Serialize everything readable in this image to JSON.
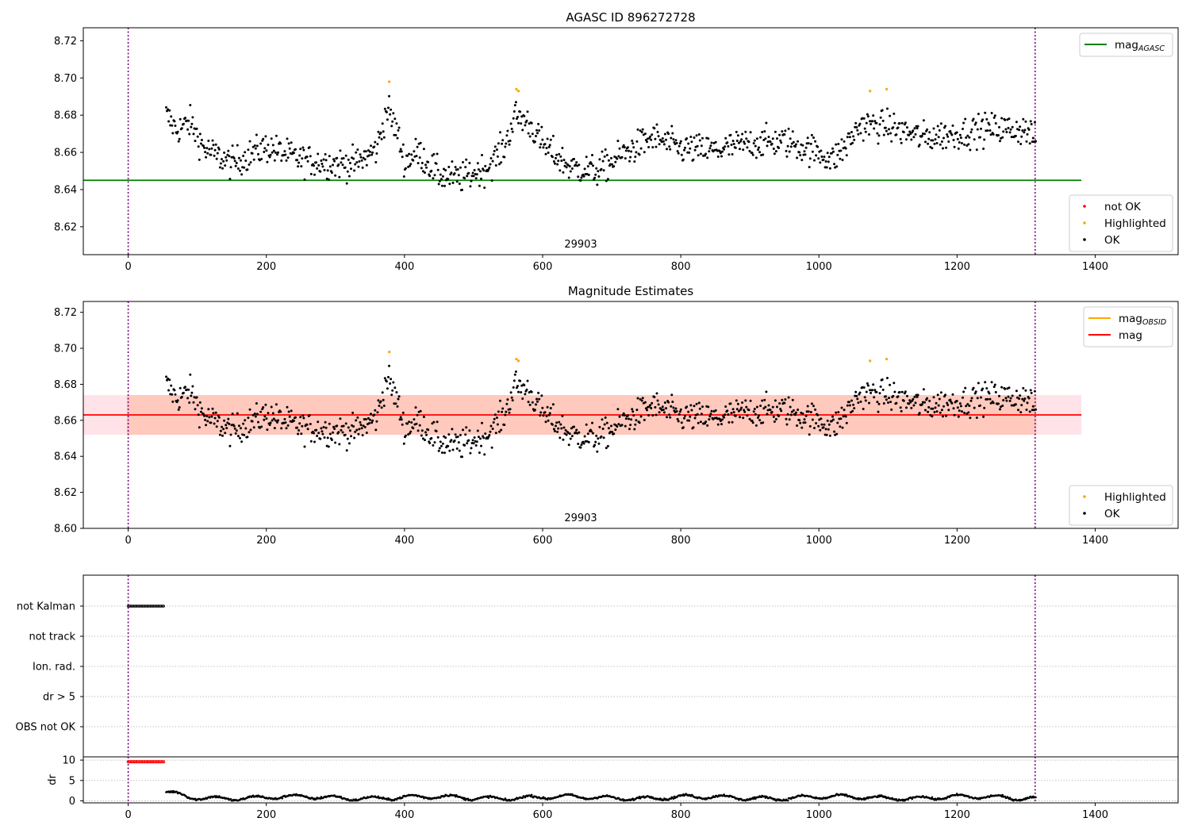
{
  "figure": {
    "width": 1500,
    "height": 1050
  },
  "chart_data": [
    {
      "type": "scatter",
      "title": "AGASC ID 896272728",
      "xlim": [
        -65,
        1520
      ],
      "ylim": [
        8.605,
        8.727
      ],
      "xticks": [
        0,
        200,
        400,
        600,
        800,
        1000,
        1200,
        1400
      ],
      "yticks": [
        8.62,
        8.64,
        8.66,
        8.68,
        8.7,
        8.72
      ],
      "ytick_decimals": 2,
      "grid": false,
      "annotation": "29903",
      "annotation_x": 658,
      "vlines": [
        0,
        1313
      ],
      "hlines": [
        {
          "name": "mag_AGASC",
          "value": 8.645,
          "x0": -65,
          "x1": 1380,
          "color": "#008000"
        }
      ],
      "legends": [
        {
          "position": "top-right",
          "items": [
            {
              "kind": "line",
              "label": "mag",
              "sub": "AGASC",
              "color": "#008000"
            }
          ]
        },
        {
          "position": "bottom-right",
          "items": [
            {
              "kind": "marker",
              "label": "not OK",
              "color": "#ff0000"
            },
            {
              "kind": "marker",
              "label": "Highlighted",
              "color": "#ffa500"
            },
            {
              "kind": "marker",
              "label": "OK",
              "color": "#000000"
            }
          ]
        }
      ],
      "series": [
        {
          "name": "OK",
          "color": "#000000",
          "trend": [
            [
              55,
              8.68
            ],
            [
              70,
              8.672
            ],
            [
              90,
              8.676
            ],
            [
              110,
              8.662
            ],
            [
              150,
              8.654
            ],
            [
              200,
              8.663
            ],
            [
              250,
              8.656
            ],
            [
              300,
              8.654
            ],
            [
              330,
              8.654
            ],
            [
              360,
              8.662
            ],
            [
              375,
              8.684
            ],
            [
              390,
              8.67
            ],
            [
              400,
              8.655
            ],
            [
              420,
              8.66
            ],
            [
              450,
              8.648
            ],
            [
              480,
              8.646
            ],
            [
              520,
              8.652
            ],
            [
              545,
              8.663
            ],
            [
              560,
              8.68
            ],
            [
              580,
              8.676
            ],
            [
              600,
              8.664
            ],
            [
              640,
              8.652
            ],
            [
              680,
              8.65
            ],
            [
              720,
              8.66
            ],
            [
              760,
              8.668
            ],
            [
              800,
              8.662
            ],
            [
              850,
              8.661
            ],
            [
              900,
              8.665
            ],
            [
              950,
              8.666
            ],
            [
              1000,
              8.66
            ],
            [
              1020,
              8.656
            ],
            [
              1040,
              8.664
            ],
            [
              1060,
              8.675
            ],
            [
              1100,
              8.674
            ],
            [
              1150,
              8.668
            ],
            [
              1200,
              8.67
            ],
            [
              1250,
              8.673
            ],
            [
              1300,
              8.672
            ],
            [
              1315,
              8.666
            ]
          ],
          "range": [
            55,
            1315
          ],
          "step": 1.2,
          "spread": 0.0055
        },
        {
          "name": "Highlighted",
          "color": "#ffa500",
          "x": [
            378,
            562,
            565,
            1074,
            1098
          ],
          "y": [
            8.698,
            8.694,
            8.693,
            8.693,
            8.694
          ]
        }
      ]
    },
    {
      "type": "scatter",
      "title": "Magnitude Estimates",
      "xlim": [
        -65,
        1520
      ],
      "ylim": [
        8.6,
        8.726
      ],
      "xticks": [
        0,
        200,
        400,
        600,
        800,
        1000,
        1200,
        1400
      ],
      "yticks": [
        8.6,
        8.62,
        8.64,
        8.66,
        8.68,
        8.7,
        8.72
      ],
      "ytick_decimals": 2,
      "grid": false,
      "annotation": "29903",
      "annotation_x": 658,
      "vlines": [
        0,
        1313
      ],
      "bands": [
        {
          "y0": 8.652,
          "y1": 8.674,
          "x0": -65,
          "x1": 1380,
          "color": "#ffc0cb",
          "opacity": 0.45
        },
        {
          "y0": 8.652,
          "y1": 8.674,
          "x0": -2,
          "x1": 1315,
          "color": "#ffa07a",
          "opacity": 0.38
        }
      ],
      "hlines": [
        {
          "name": "mag",
          "value": 8.663,
          "x0": -65,
          "x1": 1380,
          "color": "#ff0000"
        }
      ],
      "legends": [
        {
          "position": "top-right",
          "items": [
            {
              "kind": "line",
              "label": "mag",
              "sub": "OBSID",
              "color": "#ffa500"
            },
            {
              "kind": "line",
              "label": "mag",
              "sub": "",
              "color": "#ff0000"
            }
          ]
        },
        {
          "position": "bottom-right",
          "items": [
            {
              "kind": "marker",
              "label": "Highlighted",
              "color": "#ffa500"
            },
            {
              "kind": "marker",
              "label": "OK",
              "color": "#000000"
            }
          ]
        }
      ],
      "series": [
        {
          "name": "OK",
          "color": "#000000",
          "same_as": 0
        },
        {
          "name": "Highlighted",
          "color": "#ffa500",
          "x": [
            378,
            562,
            565,
            1074,
            1098
          ],
          "y": [
            8.698,
            8.694,
            8.693,
            8.693,
            8.694
          ]
        }
      ]
    },
    {
      "type": "scatter",
      "title": "",
      "xlim": [
        -65,
        1520
      ],
      "categories": [
        "not Kalman",
        "not track",
        "Ion. rad.",
        "dr > 5",
        "OBS not OK"
      ],
      "grid": true,
      "vlines": [
        0,
        1313
      ],
      "series": [
        {
          "name": "not Kalman",
          "color": "#000000",
          "x_range": [
            0,
            52
          ],
          "step": 1.6
        }
      ]
    },
    {
      "type": "scatter",
      "title": "",
      "ylabel": "dr",
      "xlim": [
        -65,
        1520
      ],
      "ylim": [
        -0.5,
        10.8
      ],
      "xticks": [
        0,
        200,
        400,
        600,
        800,
        1000,
        1200,
        1400
      ],
      "yticks": [
        0,
        5,
        10
      ],
      "ytick_decimals": 0,
      "grid": true,
      "vlines": [
        0,
        1313
      ],
      "series": [
        {
          "name": "not OK",
          "color": "#ff0000",
          "x_range": [
            0,
            52
          ],
          "value": 9.6,
          "step": 1.6
        },
        {
          "name": "OK",
          "color": "#000000",
          "range": [
            55,
            1315
          ],
          "step": 1.2,
          "base": 0.8
        }
      ]
    }
  ]
}
